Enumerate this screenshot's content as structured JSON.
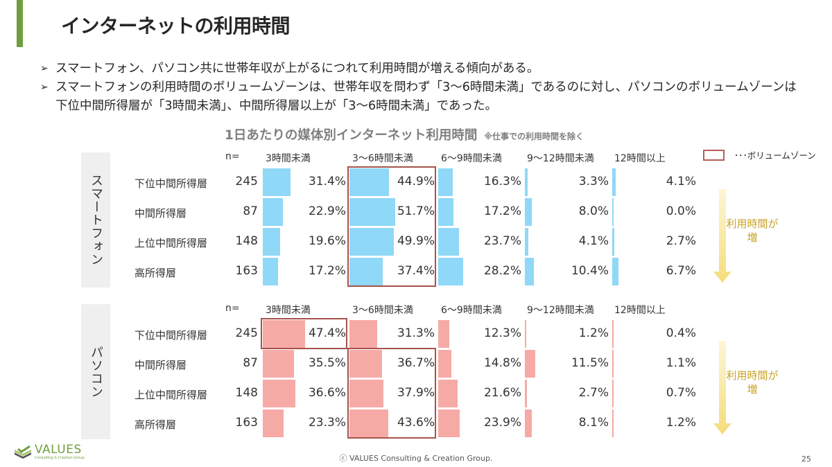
{
  "header": {
    "title": "インターネットの利用時間",
    "accent_color": "#6f9e3f"
  },
  "bullets": [
    "スマートフォン、パソコン共に世帯年収が上がるにつれて利用時間が増える傾向がある。",
    "スマートフォンの利用時間のボリュームゾーンは、世帯年収を問わず「3～6時間未満」であるのに対し、パソコンのボリュームゾーンは下位中間所得層が「3時間未満」、中間所得層以上が「3～6時間未満」であった。"
  ],
  "bullet_mark": "➢",
  "legend": {
    "label": "･･･ボリュームゾーン",
    "box_color": "#b85c55"
  },
  "arrow_label": {
    "line1": "利用時間が",
    "line2": "増",
    "color": "#c9a227"
  },
  "chart_data": {
    "type": "table",
    "title": "1日あたりの媒体別インターネット利用時間",
    "note": "※仕事での利用時間を除く",
    "n_header": "n=",
    "categories": [
      "3時間未満",
      "3～6時間未満",
      "6～9時間未満",
      "9～12時間未満",
      "12時間以上"
    ],
    "unit": "%",
    "panels": [
      {
        "name": "スマートフォン",
        "color": "#8fd8f7",
        "rows": [
          {
            "label": "下位中間所得層",
            "n": "245",
            "values": [
              31.4,
              44.9,
              16.3,
              3.3,
              4.1
            ],
            "volume_zone": 1
          },
          {
            "label": "中間所得層",
            "n": "87",
            "values": [
              22.9,
              51.7,
              17.2,
              8.0,
              0.0
            ],
            "volume_zone": 1
          },
          {
            "label": "上位中間所得層",
            "n": "148",
            "values": [
              19.6,
              49.9,
              23.7,
              4.1,
              2.7
            ],
            "volume_zone": 1
          },
          {
            "label": "高所得層",
            "n": "163",
            "values": [
              17.2,
              37.4,
              28.2,
              10.4,
              6.7
            ],
            "volume_zone": 1
          }
        ]
      },
      {
        "name": "パソコン",
        "color": "#f6aaa6",
        "rows": [
          {
            "label": "下位中間所得層",
            "n": "245",
            "values": [
              47.4,
              31.3,
              12.3,
              1.2,
              0.4
            ],
            "volume_zone": 0
          },
          {
            "label": "中間所得層",
            "n": "87",
            "values": [
              35.5,
              36.7,
              14.8,
              11.5,
              1.1
            ],
            "volume_zone": 1
          },
          {
            "label": "上位中間所得層",
            "n": "148",
            "values": [
              36.6,
              37.9,
              21.6,
              2.7,
              0.7
            ],
            "volume_zone": 1
          },
          {
            "label": "高所得層",
            "n": "163",
            "values": [
              23.3,
              43.6,
              23.9,
              8.1,
              1.2
            ],
            "volume_zone": 1
          }
        ]
      }
    ]
  },
  "footer": {
    "copyright": "ⓒ VALUES Consulting & Creation Group.",
    "page_number": "25",
    "logo_main": "VALUES",
    "logo_sub": "Consulting & Creation Group"
  }
}
